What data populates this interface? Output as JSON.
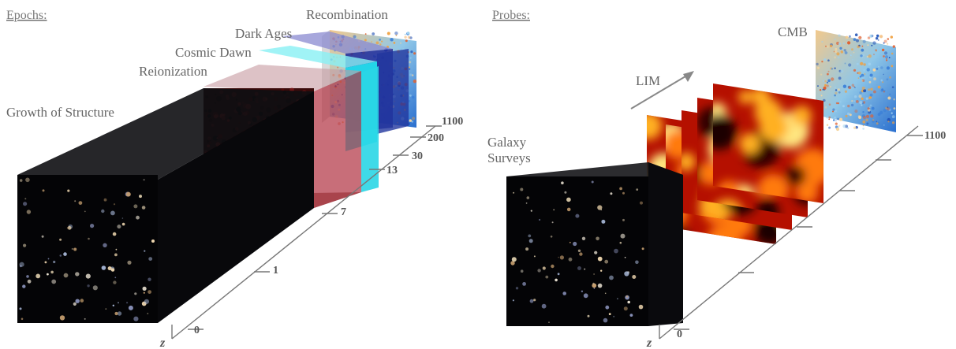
{
  "left_panel": {
    "heading": "Epochs:",
    "epochs": {
      "growth": "Growth of Structure",
      "reionization": "Reionization",
      "cosmic_dawn": "Cosmic Dawn",
      "dark_ages": "Dark Ages",
      "recombination": "Recombination"
    },
    "axis_label": "z",
    "ticks": [
      "0",
      "1",
      "7",
      "13",
      "30",
      "200",
      "1100"
    ]
  },
  "right_panel": {
    "heading": "Probes:",
    "probes": {
      "galaxy_surveys_line1": "Galaxy",
      "galaxy_surveys_line2": "Surveys",
      "lim": "LIM",
      "cmb": "CMB"
    },
    "axis_label": "z",
    "ticks": [
      "0",
      "1100"
    ]
  },
  "colors": {
    "reionization": "#b0303a",
    "cosmic_dawn": "#33e6ee",
    "dark_ages": "#2a2f9a",
    "axis": "#666666",
    "galaxy_box": "#050508"
  }
}
